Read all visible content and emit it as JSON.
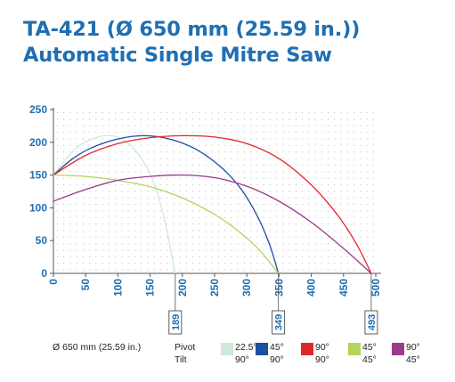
{
  "title_line1": "TA-421 (Ø 650 mm (25.59 in.))",
  "title_line2": "Automatic Single Mitre Saw",
  "legend": {
    "diameter_label": "Ø 650 mm (25.59 in.)",
    "pivot_label": "Pivot",
    "tilt_label": "Tilt",
    "items": [
      {
        "pivot": "22.5°",
        "tilt": "90°",
        "color": "#cfe9d9"
      },
      {
        "pivot": "45°",
        "tilt": "90°",
        "color": "#1c4fa0"
      },
      {
        "pivot": "90°",
        "tilt": "90°",
        "color": "#e2272b"
      },
      {
        "pivot": "45°",
        "tilt": "45°",
        "color": "#b4d45c"
      },
      {
        "pivot": "90°",
        "tilt": "45°",
        "color": "#9c3a8c"
      }
    ]
  },
  "chart_data": {
    "type": "line",
    "xlim": [
      0,
      500
    ],
    "ylim": [
      0,
      250
    ],
    "x_ticks": [
      "0",
      "50",
      "100",
      "150",
      "200",
      "250",
      "300",
      "350",
      "400",
      "450",
      "500"
    ],
    "y_ticks": [
      "0",
      "50",
      "100",
      "150",
      "200",
      "250"
    ],
    "grid": true,
    "cut_markers": [
      "189",
      "349",
      "493"
    ],
    "cut_marker_values": [
      189,
      349,
      493
    ],
    "series": [
      {
        "pivot": "22.5°",
        "tilt": "90°",
        "color": "#cfe9d9",
        "points": [
          [
            0,
            150
          ],
          [
            20,
            175
          ],
          [
            40,
            195
          ],
          [
            60,
            205
          ],
          [
            80,
            210
          ],
          [
            100,
            208
          ],
          [
            120,
            195
          ],
          [
            140,
            170
          ],
          [
            155,
            140
          ],
          [
            165,
            110
          ],
          [
            175,
            70
          ],
          [
            182,
            35
          ],
          [
            189,
            0
          ]
        ]
      },
      {
        "pivot": "45°",
        "tilt": "90°",
        "color": "#1c4fa0",
        "points": [
          [
            0,
            150
          ],
          [
            30,
            175
          ],
          [
            60,
            192
          ],
          [
            100,
            205
          ],
          [
            140,
            210
          ],
          [
            180,
            205
          ],
          [
            220,
            190
          ],
          [
            260,
            162
          ],
          [
            290,
            130
          ],
          [
            315,
            90
          ],
          [
            335,
            45
          ],
          [
            349,
            0
          ]
        ]
      },
      {
        "pivot": "90°",
        "tilt": "90°",
        "color": "#e2272b",
        "points": [
          [
            0,
            150
          ],
          [
            50,
            180
          ],
          [
            100,
            198
          ],
          [
            150,
            207
          ],
          [
            200,
            210
          ],
          [
            250,
            208
          ],
          [
            300,
            198
          ],
          [
            350,
            175
          ],
          [
            400,
            135
          ],
          [
            440,
            90
          ],
          [
            470,
            45
          ],
          [
            493,
            0
          ]
        ]
      },
      {
        "pivot": "45°",
        "tilt": "45°",
        "color": "#b4d45c",
        "points": [
          [
            0,
            150
          ],
          [
            50,
            148
          ],
          [
            100,
            142
          ],
          [
            150,
            132
          ],
          [
            200,
            115
          ],
          [
            250,
            90
          ],
          [
            290,
            62
          ],
          [
            320,
            35
          ],
          [
            349,
            0
          ]
        ]
      },
      {
        "pivot": "90°",
        "tilt": "45°",
        "color": "#9c3a8c",
        "points": [
          [
            0,
            110
          ],
          [
            50,
            128
          ],
          [
            100,
            142
          ],
          [
            150,
            148
          ],
          [
            200,
            150
          ],
          [
            250,
            146
          ],
          [
            300,
            133
          ],
          [
            350,
            110
          ],
          [
            400,
            78
          ],
          [
            450,
            38
          ],
          [
            493,
            0
          ]
        ]
      }
    ]
  }
}
